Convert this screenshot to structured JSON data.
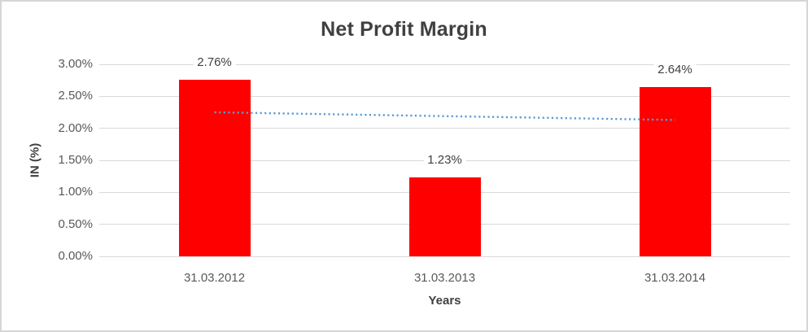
{
  "frame": {
    "border_color": "#D6D6D6",
    "background": "#FFFFFF"
  },
  "chart_data": {
    "type": "bar",
    "title": "Net Profit Margin",
    "xlabel": "Years",
    "ylabel": "IN (%)",
    "categories": [
      "31.03.2012",
      "31.03.2013",
      "31.03.2014"
    ],
    "values": [
      2.76,
      1.23,
      2.64
    ],
    "value_labels": [
      "2.76%",
      "1.23%",
      "2.64%"
    ],
    "ylim": [
      0,
      3.0
    ],
    "ytick_step": 0.5,
    "yticks": [
      "0.00%",
      "0.50%",
      "1.00%",
      "1.50%",
      "2.00%",
      "2.50%",
      "3.00%"
    ],
    "grid": true,
    "legend": "none",
    "bar_color": "#FF0000",
    "grid_color": "#D9D9D9",
    "text_color": "#404040",
    "tick_color": "#595959",
    "trendline": {
      "type": "linear",
      "style": "dotted",
      "color": "#5B9BD5",
      "start_value": 2.25,
      "end_value": 2.13
    }
  }
}
